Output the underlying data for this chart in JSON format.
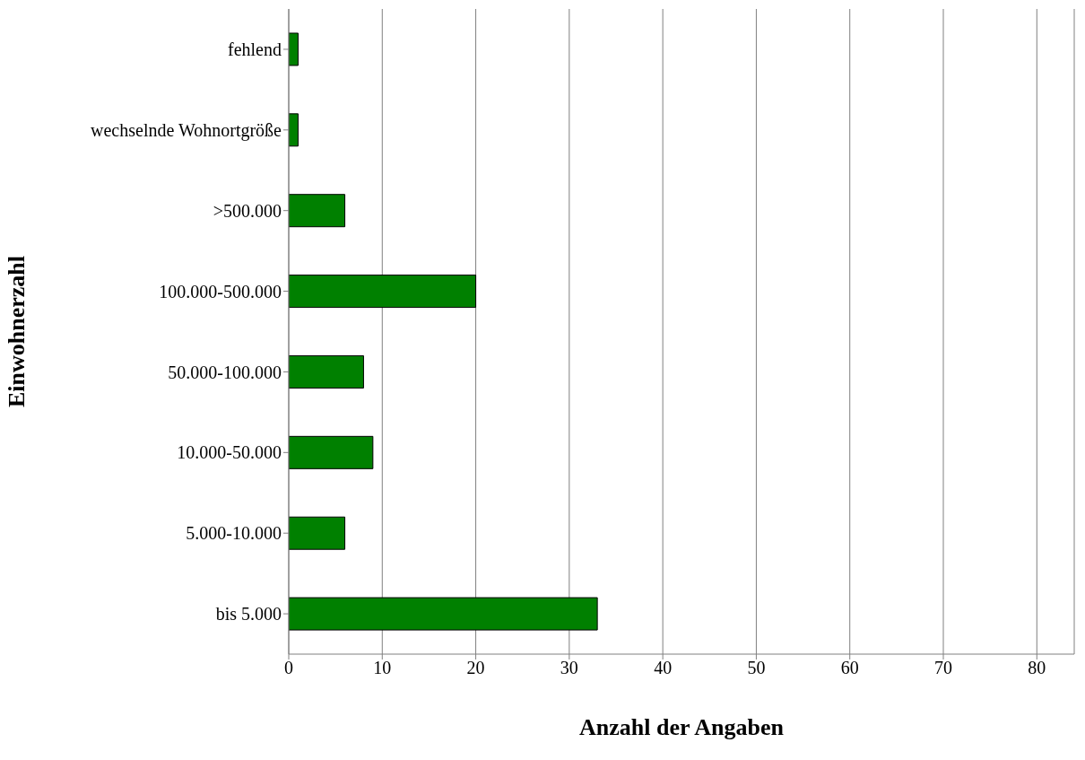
{
  "chart_data": {
    "type": "bar",
    "orientation": "horizontal",
    "categories": [
      "fehlend",
      "wechselnde Wohnortgröße",
      ">500.000",
      "100.000-500.000",
      "50.000-100.000",
      "10.000-50.000",
      "5.000-10.000",
      "bis 5.000"
    ],
    "values": [
      1,
      1,
      6,
      20,
      8,
      9,
      6,
      33
    ],
    "color": "#008000",
    "xlim": [
      0,
      84
    ],
    "xticks": [
      0,
      10,
      20,
      30,
      40,
      50,
      60,
      70,
      80
    ],
    "grid": "x",
    "xlabel": "Anzahl der Angaben",
    "ylabel": "Einwohnerzahl"
  }
}
